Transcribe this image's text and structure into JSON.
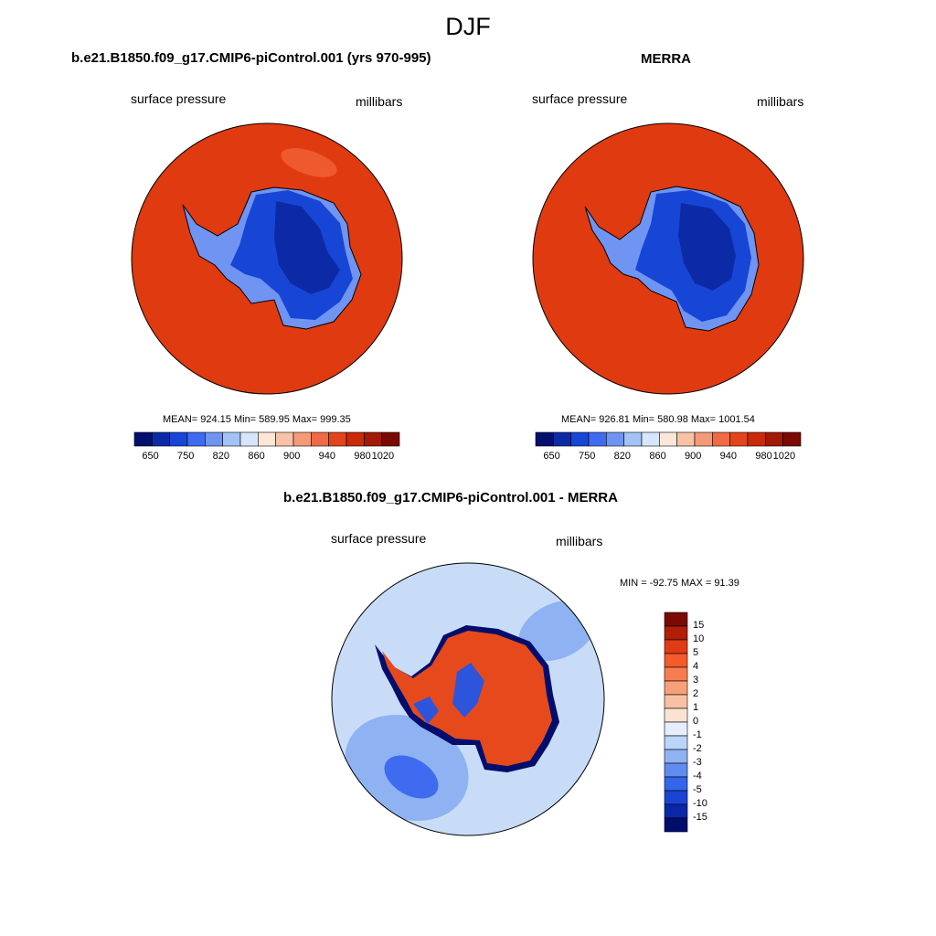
{
  "title": "DJF",
  "panel_left": {
    "title": "b.e21.B1850.f09_g17.CMIP6-piControl.001 (yrs 970-995)",
    "variable": "surface pressure",
    "units": "millibars",
    "stats": "MEAN= 924.15  Min= 589.95  Max= 999.35"
  },
  "panel_right": {
    "title": "MERRA",
    "variable": "surface pressure",
    "units": "millibars",
    "stats": "MEAN= 926.81  Min= 580.98  Max= 1001.54"
  },
  "panel_diff": {
    "title": "b.e21.B1850.f09_g17.CMIP6-piControl.001 - MERRA",
    "variable": "surface pressure",
    "units": "millibars",
    "stats": "MIN = -92.75 MAX =  91.39"
  },
  "colorbar_main": {
    "labels": [
      "650",
      "750",
      "820",
      "860",
      "900",
      "940",
      "980",
      "1020"
    ],
    "colors": [
      "#050f6e",
      "#0d2aa6",
      "#1746d6",
      "#3e6bf0",
      "#6f94f2",
      "#a3c2f5",
      "#d7e6fb",
      "#fbe6d8",
      "#f7c2a5",
      "#f39a78",
      "#ef6a45",
      "#e3441b",
      "#c92a09",
      "#a01a05",
      "#7a0a03"
    ]
  },
  "colorbar_diff": {
    "labels": [
      "15",
      "10",
      "5",
      "4",
      "3",
      "2",
      "1",
      "0",
      "-1",
      "-2",
      "-3",
      "-4",
      "-5",
      "-10",
      "-15"
    ],
    "colors": [
      "#7a0a03",
      "#b01f06",
      "#e03c14",
      "#f55a2a",
      "#f77d50",
      "#f6a07a",
      "#f8c1a3",
      "#fbe3d2",
      "#e4eefc",
      "#bcd4f7",
      "#8fb2f2",
      "#5f8cee",
      "#3366e8",
      "#1b44d4",
      "#0b27a8",
      "#030e6c"
    ]
  },
  "map_colors": {
    "ocean_high": "#e03a10",
    "ocean_patch": "#ee5a2e",
    "ice_low": "#0d2aa6",
    "ice_mid": "#1746d6",
    "ice_light": "#6f94f2",
    "diff_ocean_light": "#c8dcf7",
    "diff_ocean_mid": "#8fb2f2",
    "diff_ocean_dark": "#3e6bf0",
    "diff_land_pos": "#e64a1c",
    "diff_land_neg": "#2d55db",
    "diff_edge": "#030e6c"
  }
}
